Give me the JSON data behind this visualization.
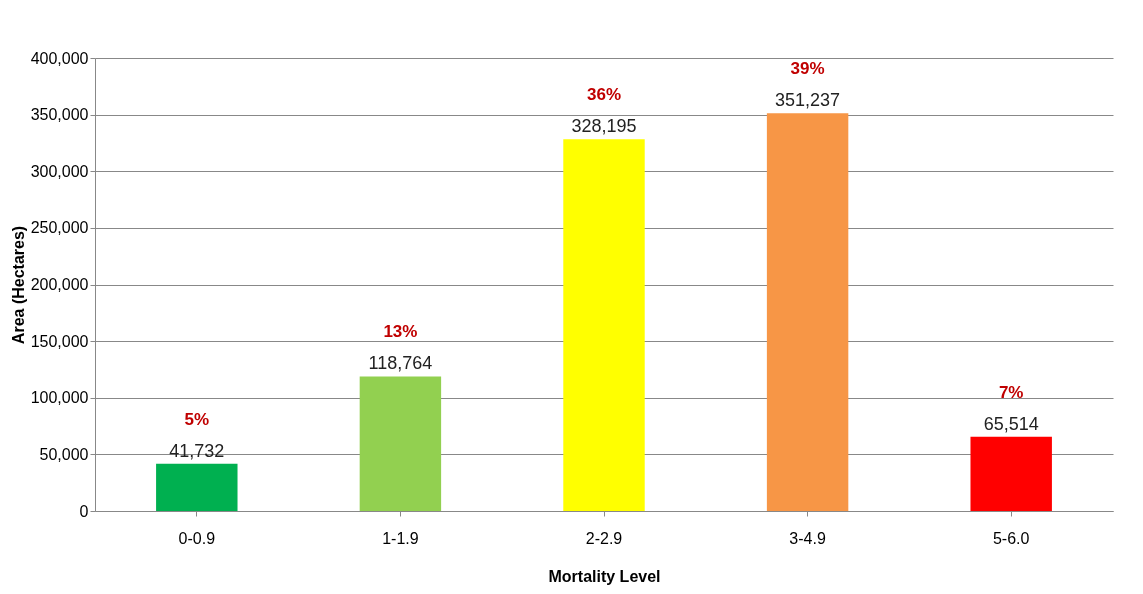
{
  "chart_data": {
    "type": "bar",
    "categories": [
      "0-0.9",
      "1-1.9",
      "2-2.9",
      "3-4.9",
      "5-6.0"
    ],
    "values": [
      41732,
      118764,
      328195,
      351237,
      65514
    ],
    "value_labels": [
      "41,732",
      "118,764",
      "328,195",
      "351,237",
      "65,514"
    ],
    "colors": [
      "#00b050",
      "#92d050",
      "#ffff00",
      "#f79646",
      "#ff0000"
    ],
    "xlabel": "Mortality Level",
    "ylabel": "Area (Hectares)",
    "ylim": [
      0,
      400000
    ],
    "yticks": [
      0,
      {
        "value": 50000,
        "label": "50,000"
      },
      {
        "value": 100000,
        "label": "100,000"
      },
      {
        "value": 150000,
        "label": "150,000"
      },
      {
        "value": 200000,
        "label": "200,000"
      },
      {
        "value": 250000,
        "label": "250,000"
      },
      {
        "value": 300000,
        "label": "300,000"
      },
      {
        "value": 350000,
        "label": "350,000"
      },
      {
        "value": 400000,
        "label": "400,000"
      }
    ],
    "grid": "y",
    "legend": false,
    "annotations": [
      "5%",
      "13%",
      "36%",
      "39%",
      "7%"
    ]
  }
}
